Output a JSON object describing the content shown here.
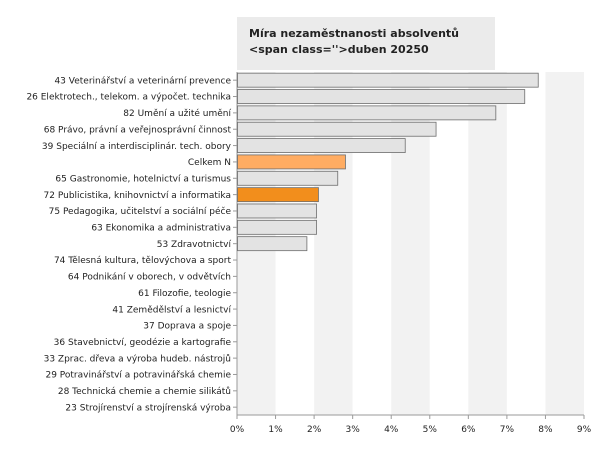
{
  "chart_data": {
    "type": "bar",
    "orientation": "horizontal",
    "title": "Míra nezaměstnanosti absolventů <span class=''>duben 20250",
    "categories": [
      "43 Veterinářství a veterinární prevence",
      "26 Elektrotech., telekom. a výpočet. technika",
      "82 Umění a užité umění",
      "68 Právo, právní a veřejnosprávní činnost",
      "39 Speciální a interdisciplinár. tech. obory",
      "Celkem N",
      "65 Gastronomie, hotelnictví a turismus",
      "72 Publicistika, knihovnictví a informatika",
      "75 Pedagogika, učitelství a sociální péče",
      "63 Ekonomika a administrativa",
      "53 Zdravotnictví",
      "74 Tělesná kultura, tělovýchova a sport",
      "64 Podnikání v oborech, v odvětvích",
      "61 Filozofie, teologie",
      "41 Zemědělství a lesnictví",
      "37 Doprava a spoje",
      "36 Stavebnictví, geodézie a kartografie",
      "33 Zprac. dřeva a výroba hudeb. nástrojů",
      "29 Potravinářství a potravinářská chemie",
      "28 Technická chemie a chemie silikátů",
      "23 Strojírenství a strojírenská výroba"
    ],
    "values": [
      7.8,
      7.45,
      6.7,
      5.15,
      4.35,
      2.8,
      2.6,
      2.1,
      2.05,
      2.05,
      1.8,
      0,
      0,
      0,
      0,
      0,
      0,
      0,
      0,
      0,
      0
    ],
    "highlight": {
      "Celkem N": "#ffac62",
      "72 Publicistika, knihovnictví a informatika": "#f28e1c"
    },
    "default_bar_color": "#e3e3e3",
    "bar_border_color": "#6e6e6e",
    "xlim": [
      0,
      9
    ],
    "xticks": [
      "0%",
      "1%",
      "2%",
      "3%",
      "4%",
      "5%",
      "6%",
      "7%",
      "8%",
      "9%"
    ],
    "band_colors": [
      "#f2f2f2",
      "#ffffff"
    ],
    "grid": false
  }
}
